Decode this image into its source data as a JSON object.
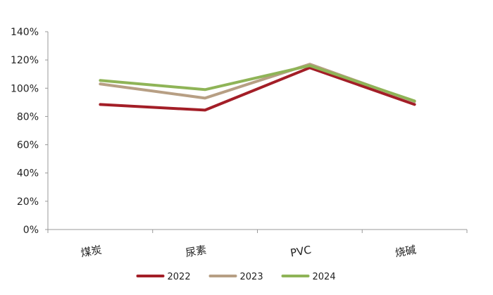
{
  "chart_data": {
    "type": "line",
    "categories": [
      "煤炭",
      "尿素",
      "PVC",
      "烧碱"
    ],
    "yticks": [
      "0%",
      "20%",
      "40%",
      "60%",
      "80%",
      "100%",
      "120%",
      "140%"
    ],
    "ylim": [
      0,
      140
    ],
    "grid": false,
    "legend_position": "bottom",
    "series": [
      {
        "name": "2022",
        "color": "#a31e27",
        "values": [
          88.5,
          84.5,
          114.5,
          88.5
        ]
      },
      {
        "name": "2023",
        "color": "#b79f84",
        "values": [
          103,
          93,
          117,
          90.5
        ]
      },
      {
        "name": "2024",
        "color": "#8fb457",
        "values": [
          105.5,
          99,
          116,
          91
        ]
      }
    ]
  }
}
